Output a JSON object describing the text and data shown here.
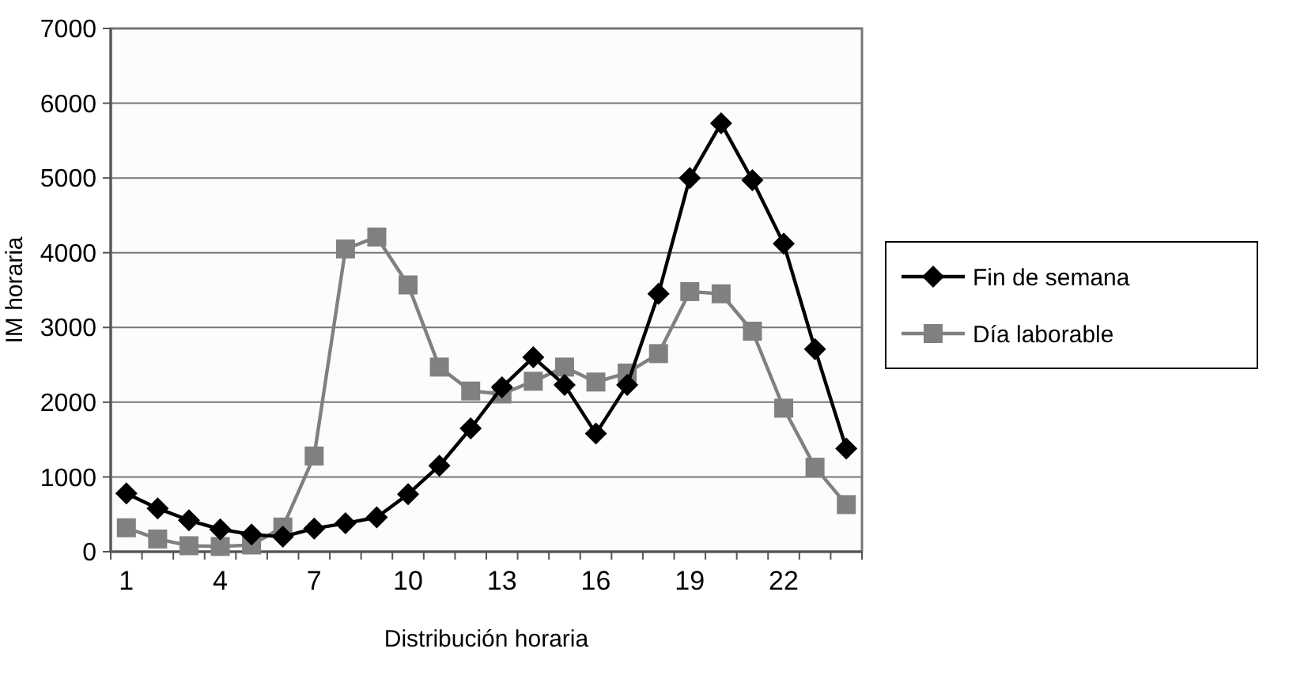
{
  "chart_data": {
    "type": "line",
    "xlabel": "Distribución horaria",
    "ylabel": "IM horaria",
    "categories": [
      "1",
      null,
      null,
      "4",
      null,
      null,
      "7",
      null,
      null,
      "10",
      null,
      null,
      "13",
      null,
      null,
      "16",
      null,
      null,
      "19",
      null,
      null,
      "22",
      null,
      null
    ],
    "series": [
      {
        "name": "Fin de semana",
        "color": "#000000",
        "marker": "diamond",
        "values": [
          780,
          580,
          420,
          300,
          230,
          200,
          310,
          380,
          460,
          770,
          1150,
          1650,
          2200,
          2600,
          2230,
          1580,
          2230,
          3450,
          5000,
          5730,
          4970,
          4120,
          2710,
          1380
        ]
      },
      {
        "name": "Día laborable",
        "color": "#808080",
        "marker": "square",
        "values": [
          320,
          170,
          80,
          70,
          90,
          330,
          1280,
          4050,
          4210,
          3570,
          2470,
          2150,
          2110,
          2280,
          2470,
          2270,
          2390,
          2650,
          3480,
          3450,
          2950,
          1920,
          1130,
          630
        ]
      }
    ],
    "ylim": [
      0,
      7000
    ],
    "yticks": [
      0,
      1000,
      2000,
      3000,
      4000,
      5000,
      6000,
      7000
    ],
    "grid": "y",
    "legend": "right",
    "line_style": "solid"
  }
}
